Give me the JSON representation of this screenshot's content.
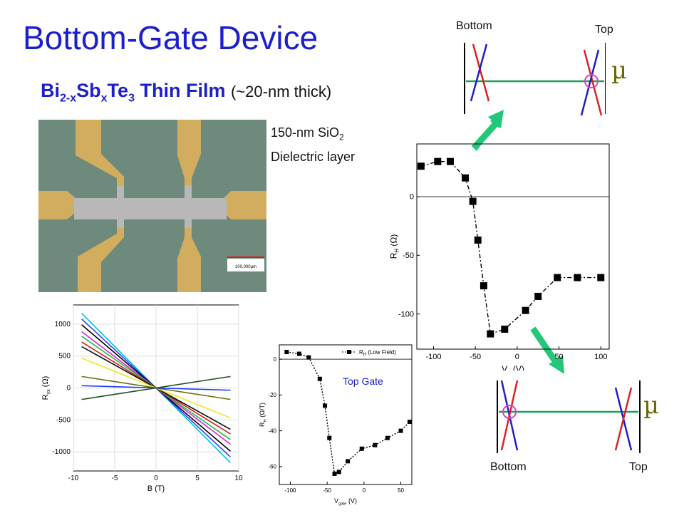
{
  "title": "Bottom-Gate Device",
  "subtitle": {
    "base1": "Bi",
    "sub1": "2-x",
    "base2": "Sb",
    "sub2": "x",
    "base3": "Te",
    "sub3": "3",
    "rest": " Thin Film",
    "note": "(~20-nm thick)"
  },
  "oxide": {
    "line1": "150-nm SiO",
    "sub": "2",
    "line2": "Dielectric layer"
  },
  "scale_bar_label": "100.000µm",
  "band_top": {
    "left_label": "Bottom",
    "right_label": "Top",
    "mu": "µ"
  },
  "band_bottom": {
    "left_label": "Bottom",
    "right_label": "Top",
    "mu": "µ"
  },
  "colors": {
    "title": "#1c20c8",
    "arrow": "#22c77a",
    "red": "#e02020",
    "blue": "#1c20c8",
    "green": "#1aa05a",
    "circle": "#e040c0"
  },
  "chart_data": [
    {
      "type": "line",
      "name_hint": "RH vs gate voltage",
      "xlabel": "V",
      "xlabel_sub": "g",
      "xlabel_unit": " (V)",
      "ylabel": "R",
      "ylabel_sub": "H",
      "ylabel_unit": " (Ω)",
      "xlim": [
        -120,
        110
      ],
      "ylim": [
        -130,
        45
      ],
      "xticks": [
        -100,
        -50,
        0,
        50,
        100
      ],
      "yticks": [
        0,
        -50,
        -100
      ],
      "zero_line": true,
      "x": [
        -115,
        -95,
        -80,
        -62,
        -53,
        -47,
        -40,
        -32,
        -15,
        10,
        25,
        48,
        72,
        100
      ],
      "y": [
        26,
        30,
        30,
        16,
        -4,
        -37,
        -76,
        -117,
        -113,
        -97,
        -85,
        -69,
        -69,
        -69
      ]
    },
    {
      "type": "line",
      "name_hint": "Ryx vs B",
      "xlabel": "B (T)",
      "ylabel": "R",
      "ylabel_sub": "yx",
      "ylabel_unit": " (Ω)",
      "xlim": [
        -10,
        10
      ],
      "ylim": [
        -1300,
        1300
      ],
      "xticks": [
        -10,
        -5,
        0,
        5,
        10
      ],
      "yticks": [
        1000,
        500,
        0,
        -500,
        -1000
      ],
      "series": [
        {
          "color": "#00c0e0",
          "slope": -130
        },
        {
          "color": "#3040ff",
          "slope": -120
        },
        {
          "color": "#000000",
          "slope": -110
        },
        {
          "color": "#e020e0",
          "slope": -98
        },
        {
          "color": "#20c040",
          "slope": -90
        },
        {
          "color": "#d02020",
          "slope": -80
        },
        {
          "color": "#101010",
          "slope": -72
        },
        {
          "color": "#e8e820",
          "slope": -52
        },
        {
          "color": "#707010",
          "slope": -20
        },
        {
          "color": "#2040ff",
          "slope": -4
        },
        {
          "color": "#205020",
          "slope": 20
        }
      ]
    },
    {
      "type": "line",
      "name_hint": "RH vs Vgate top",
      "legend": "R",
      "legend_sub": "H",
      "legend_rest": " (Low Field)",
      "annotation": "Top Gate",
      "xlabel": "V",
      "xlabel_sub": "gate",
      "xlabel_unit": " (V)",
      "ylabel": "R",
      "ylabel_sub": "H",
      "ylabel_unit": " (Ω/T)",
      "xlim": [
        -115,
        65
      ],
      "ylim": [
        -70,
        8
      ],
      "xticks": [
        -100,
        -50,
        0,
        50
      ],
      "yticks": [
        0,
        -20,
        -40,
        -60
      ],
      "zero_line": true,
      "x": [
        -105,
        -88,
        -75,
        -60,
        -53,
        -47,
        -40,
        -34,
        -22,
        -3,
        15,
        32,
        50,
        62
      ],
      "y": [
        4,
        3,
        1,
        -11,
        -26,
        -44,
        -64,
        -63,
        -57,
        -50,
        -48,
        -44,
        -40,
        -35
      ]
    }
  ]
}
